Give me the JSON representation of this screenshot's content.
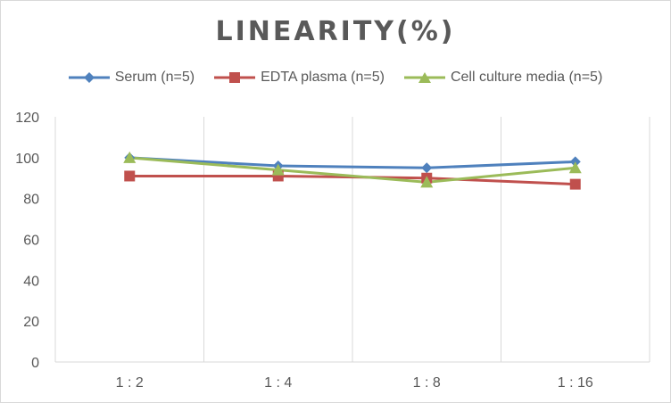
{
  "chart_data": {
    "type": "line",
    "title": "LINEARITY(%)",
    "xlabel": "",
    "ylabel": "",
    "categories": [
      "1:2",
      "1:4",
      "1:8",
      "1:16"
    ],
    "ylim": [
      0,
      120
    ],
    "yticks": [
      0,
      20,
      40,
      60,
      80,
      100,
      120
    ],
    "grid": "vertical",
    "legend_position": "top",
    "series": [
      {
        "name": "Serum (n=5)",
        "values": [
          100,
          96,
          95,
          98
        ],
        "color": "#4f81bd",
        "marker": "diamond"
      },
      {
        "name": "EDTA plasma (n=5)",
        "values": [
          91,
          91,
          90,
          87
        ],
        "color": "#c0504d",
        "marker": "square"
      },
      {
        "name": "Cell culture media (n=5)",
        "values": [
          100,
          94,
          88,
          95
        ],
        "color": "#9bbb59",
        "marker": "triangle"
      }
    ]
  }
}
